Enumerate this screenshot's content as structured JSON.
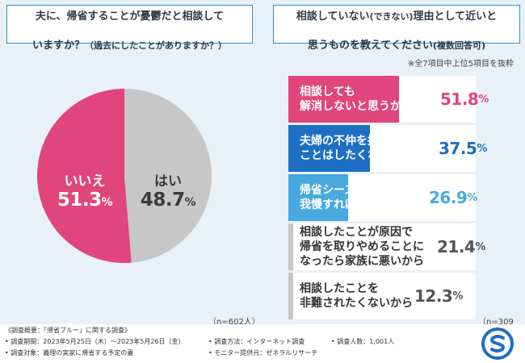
{
  "left_question": {
    "line1": "夫に、帰省することが憂鬱だと相談して",
    "line2": "いますか？",
    "line2_small": "（過去にしたことがありますか？）"
  },
  "right_question": {
    "line1": "相談していない",
    "line1_small": "(できない)",
    "line1_rest": "理由として近いと",
    "line2": "思うものを教えてください",
    "line2_small": "(複数回答可)"
  },
  "note": "※全7項目中上位5項目を抜粋",
  "n_left": "（n=602人）",
  "n_right": "（n=309人）",
  "chart_data": [
    {
      "type": "pie",
      "title": "夫に、帰省することが憂鬱だと相談していますか？（過去にしたことがありますか？）",
      "slices": [
        {
          "label": "いいえ",
          "value": 51.3,
          "color": "#e0457b"
        },
        {
          "label": "はい",
          "value": 48.7,
          "color": "#c7c7c7"
        }
      ],
      "unit": "%"
    },
    {
      "type": "bar",
      "orientation": "horizontal",
      "title": "相談していない(できない)理由として近いと思うものを教えてください(複数回答可)",
      "xlim": [
        0,
        100
      ],
      "unit": "%",
      "categories": [
        "相談しても\n解消しないと思うから",
        "夫婦の不仲を招くような\nことはしたくないから",
        "帰省シーズンだけ\n我慢すれば済むから",
        "相談したことが原因で\n帰省を取りやめることに\nなったら家族に悪いから",
        "相談したことを\n非難されたくないから"
      ],
      "values": [
        51.8,
        37.5,
        26.9,
        21.4,
        12.3
      ],
      "value_labels": [
        "51.8",
        "37.5",
        "26.9",
        "21.4",
        "12.3"
      ],
      "colors": [
        "#e0457b",
        "#1c6fc4",
        "#47a9e0",
        "#c7c7c7",
        "#c7c7c7"
      ]
    }
  ],
  "footer": {
    "title": "《調査概要：「帰省ブルー」に関する調査》",
    "period": "• 調査期間：2023年5月25日（木）〜2023年5月26日（金）",
    "target": "• 調査対象：義理の実家に帰省する予定の妻",
    "method": "• 調査方法：インターネット調査",
    "provider": "• モニター提供元：ゼネラルリサーチ",
    "people": "• 調査人数：1,001人"
  },
  "colors": {
    "pink": "#e0457b",
    "navy": "#1c6fc4",
    "sky": "#47a9e0",
    "gray": "#c7c7c7"
  },
  "logo_icon": "company-logo-icon"
}
